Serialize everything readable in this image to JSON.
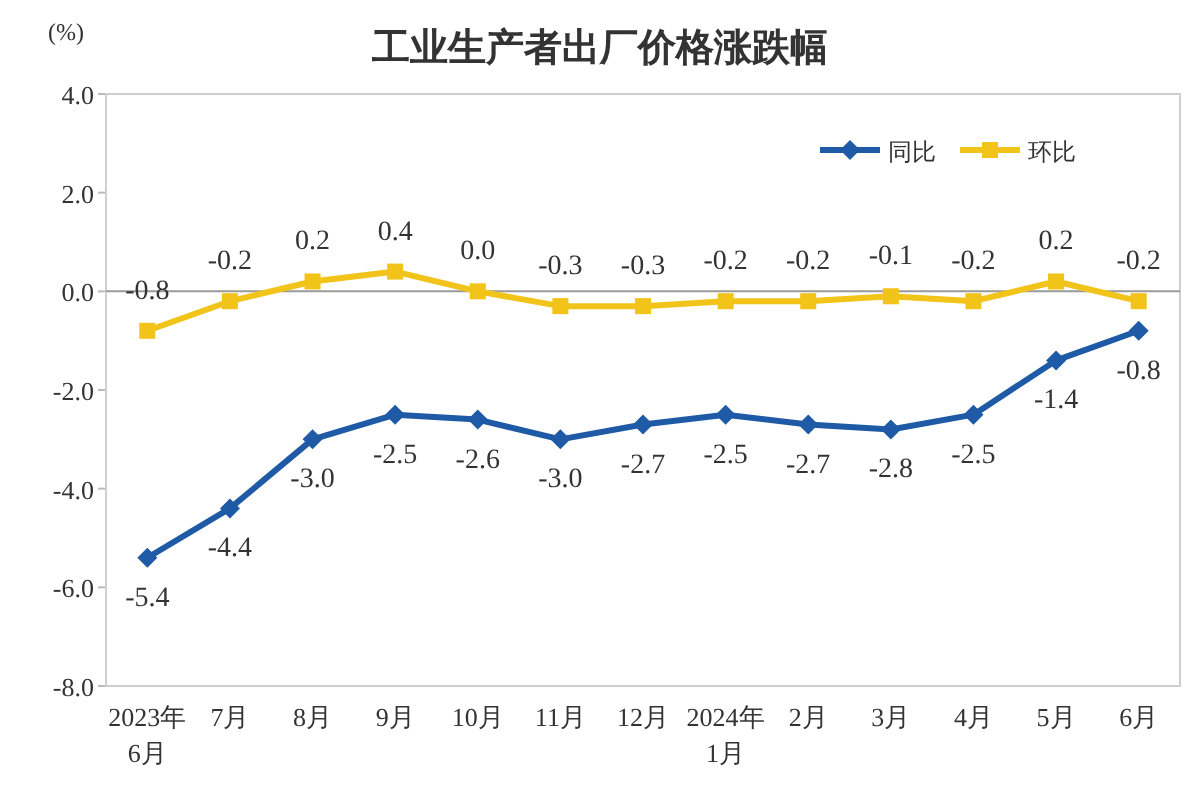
{
  "chart_data": {
    "type": "line",
    "title": "工业生产者出厂价格涨跌幅",
    "ylabel": "(%)",
    "categories": [
      "2023年6月",
      "7月",
      "8月",
      "9月",
      "10月",
      "11月",
      "12月",
      "2024年1月",
      "2月",
      "3月",
      "4月",
      "5月",
      "6月"
    ],
    "series": [
      {
        "name": "同比",
        "color": "#1f5aa6",
        "marker": "diamond",
        "values": [
          -5.4,
          -4.4,
          -3.0,
          -2.5,
          -2.6,
          -3.0,
          -2.7,
          -2.5,
          -2.7,
          -2.8,
          -2.5,
          -1.4,
          -0.8
        ],
        "value_labels": [
          "-5.4",
          "-4.4",
          "-3.0",
          "-2.5",
          "-2.6",
          "-3.0",
          "-2.7",
          "-2.5",
          "-2.7",
          "-2.8",
          "-2.5",
          "-1.4",
          "-0.8"
        ]
      },
      {
        "name": "环比",
        "color": "#f2c318",
        "marker": "square",
        "values": [
          -0.8,
          -0.2,
          0.2,
          0.4,
          0.0,
          -0.3,
          -0.3,
          -0.2,
          -0.2,
          -0.1,
          -0.2,
          0.2,
          -0.2
        ],
        "value_labels": [
          "-0.8",
          "-0.2",
          "0.2",
          "0.4",
          "0.0",
          "-0.3",
          "-0.3",
          "-0.2",
          "-0.2",
          "-0.1",
          "-0.2",
          "0.2",
          "-0.2"
        ]
      }
    ],
    "ylim": [
      -8,
      4
    ],
    "yticks": [
      {
        "value": 4,
        "label": "4.0"
      },
      {
        "value": 2,
        "label": "2.0"
      },
      {
        "value": 0,
        "label": "0.0"
      },
      {
        "value": -2,
        "label": "-2.0"
      },
      {
        "value": -4,
        "label": "-4.0"
      },
      {
        "value": -6,
        "label": "-6.0"
      },
      {
        "value": -8,
        "label": "-8.0"
      }
    ],
    "ref_lines": [
      {
        "axis": "y",
        "value": 0,
        "color": "#9a9a9a"
      }
    ],
    "grid": false,
    "legend": "top right"
  }
}
